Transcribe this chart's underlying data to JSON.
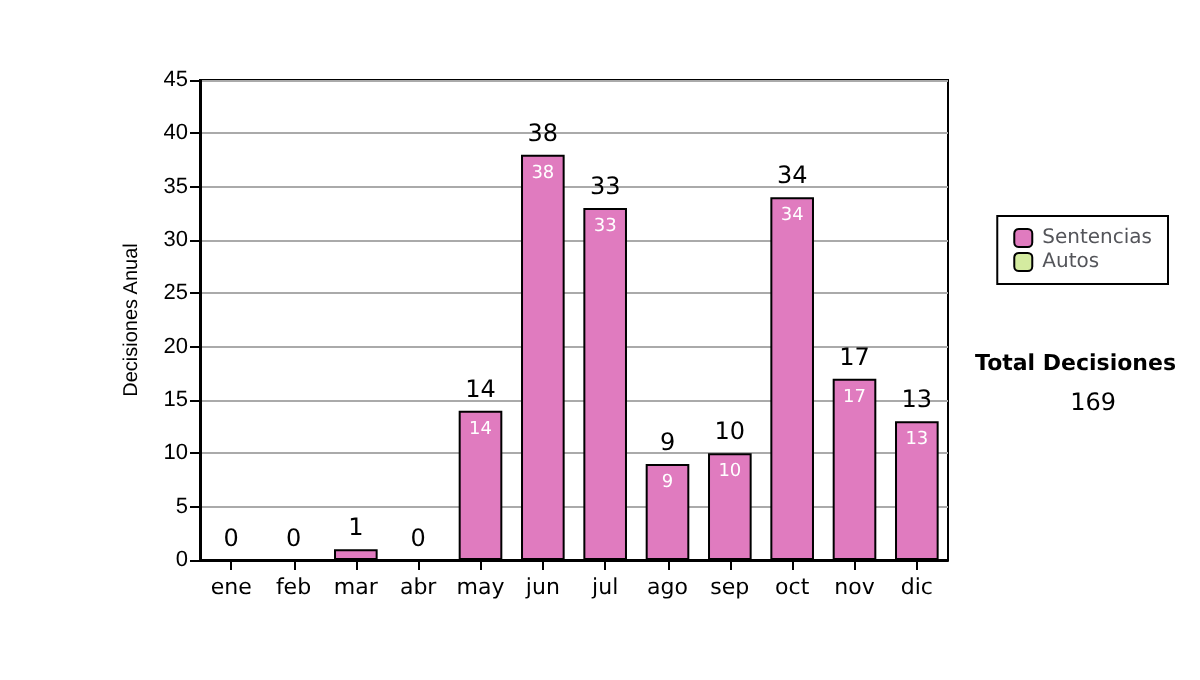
{
  "chart_data": {
    "type": "bar",
    "ylabel": "Decisiones Anual",
    "categories": [
      "ene",
      "feb",
      "mar",
      "abr",
      "may",
      "jun",
      "jul",
      "ago",
      "sep",
      "oct",
      "nov",
      "dic"
    ],
    "series": [
      {
        "name": "Sentencias",
        "color": "#e07bbf",
        "values": [
          0,
          0,
          1,
          0,
          14,
          38,
          33,
          9,
          10,
          34,
          17,
          13
        ],
        "value_labels": [
          null,
          null,
          null,
          null,
          "14",
          "38",
          "33",
          "9",
          "10",
          "34",
          "17",
          "13"
        ]
      },
      {
        "name": "Autos",
        "color": "#d4eba0",
        "values": [
          0,
          0,
          0,
          0,
          0,
          0,
          0,
          0,
          0,
          0,
          0,
          0
        ]
      }
    ],
    "stacked": true,
    "totals": [
      "0",
      "0",
      "1",
      "0",
      "14",
      "38",
      "33",
      "9",
      "10",
      "34",
      "17",
      "13"
    ],
    "ylim": [
      0,
      45
    ],
    "yticks": [
      0,
      5,
      10,
      15,
      20,
      25,
      30,
      35,
      40,
      45
    ],
    "grid": "y",
    "legend": "right",
    "annotations": [
      "Total Decisiones",
      "169"
    ]
  }
}
